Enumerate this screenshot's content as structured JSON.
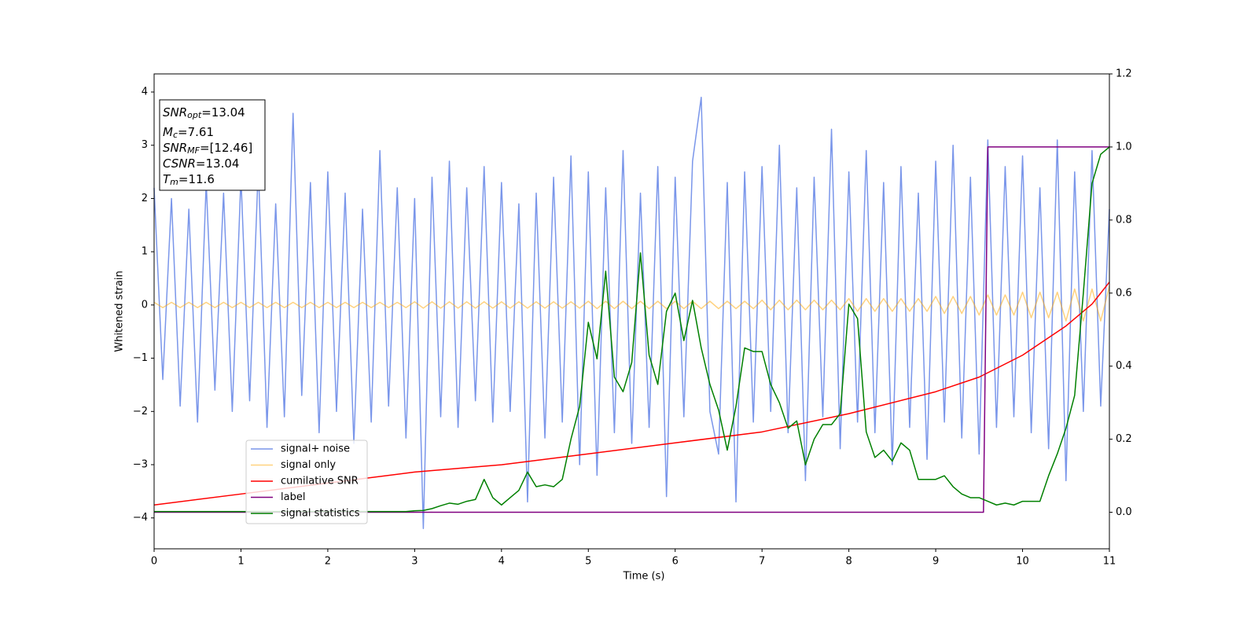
{
  "chart_data": {
    "type": "line",
    "xlabel": "Time (s)",
    "ylabel": "Whitened strain",
    "xlim": [
      0,
      11
    ],
    "xticks": [
      0,
      1,
      2,
      3,
      4,
      5,
      6,
      7,
      8,
      9,
      10,
      11
    ],
    "ylim": [
      -4.58,
      4.34
    ],
    "yticks": [
      -4,
      -3,
      -2,
      -1,
      0,
      1,
      2,
      3,
      4
    ],
    "y2lim": [
      -0.1,
      1.2
    ],
    "y2ticks": [
      {
        "value": 0,
        "label": "0.0"
      },
      {
        "value": 0.2,
        "label": "0.2"
      },
      {
        "value": 0.4,
        "label": "0.4"
      },
      {
        "value": 0.6,
        "label": "0.6"
      },
      {
        "value": 0.8,
        "label": "0.8"
      },
      {
        "value": 1,
        "label": "1.0"
      },
      {
        "value": 1.2,
        "label": "1.2"
      }
    ],
    "annotations": [
      {
        "name": "SNR",
        "sub": "opt",
        "text": "=13.04"
      },
      {
        "name": "M",
        "sub": "c",
        "text": "=7.61"
      },
      {
        "name": "SNR",
        "sub": "MF",
        "text": "=[12.46]"
      },
      {
        "name": "CSNR",
        "text": "=13.04"
      },
      {
        "name": "T",
        "sub": "m",
        "text": "=11.6"
      }
    ],
    "x": [
      0,
      0.1,
      0.2,
      0.3,
      0.4,
      0.5,
      0.6,
      0.7,
      0.8,
      0.9,
      1,
      1.1,
      1.2,
      1.3,
      1.4,
      1.5,
      1.6,
      1.7,
      1.8,
      1.9,
      2,
      2.1,
      2.2,
      2.3,
      2.4,
      2.5,
      2.6,
      2.7,
      2.8,
      2.9,
      3,
      3.1,
      3.2,
      3.3,
      3.4,
      3.5,
      3.6,
      3.7,
      3.8,
      3.9,
      4,
      4.1,
      4.2,
      4.3,
      4.4,
      4.5,
      4.6,
      4.7,
      4.8,
      4.9,
      5,
      5.1,
      5.2,
      5.3,
      5.4,
      5.5,
      5.6,
      5.7,
      5.8,
      5.9,
      6,
      6.1,
      6.2,
      6.3,
      6.4,
      6.5,
      6.6,
      6.7,
      6.8,
      6.9,
      7,
      7.1,
      7.2,
      7.3,
      7.4,
      7.5,
      7.6,
      7.7,
      7.8,
      7.9,
      8,
      8.1,
      8.2,
      8.3,
      8.4,
      8.5,
      8.6,
      8.7,
      8.8,
      8.9,
      9,
      9.1,
      9.2,
      9.3,
      9.4,
      9.5,
      9.6,
      9.7,
      9.8,
      9.9,
      10,
      10.1,
      10.2,
      10.3,
      10.4,
      10.5,
      10.6,
      10.7,
      10.8,
      10.9,
      11
    ],
    "series": [
      {
        "name": "signal+ noise",
        "color": "#4169e1",
        "opacity": 0.7,
        "values": [
          2.2,
          -1.4,
          2.0,
          -1.9,
          1.8,
          -2.2,
          2.3,
          -1.6,
          2.1,
          -2.0,
          2.4,
          -1.8,
          2.6,
          -2.3,
          1.9,
          -2.1,
          3.6,
          -1.7,
          2.3,
          -2.4,
          2.5,
          -2.0,
          2.1,
          -2.6,
          1.8,
          -2.2,
          2.9,
          -1.9,
          2.2,
          -2.5,
          2.0,
          -4.2,
          2.4,
          -2.1,
          2.7,
          -2.3,
          2.2,
          -1.8,
          2.6,
          -2.2,
          2.3,
          -2.0,
          1.9,
          -3.7,
          2.1,
          -2.5,
          2.4,
          -2.2,
          2.8,
          -3.0,
          2.5,
          -3.2,
          2.2,
          -2.4,
          2.9,
          -2.6,
          2.1,
          -2.3,
          2.6,
          -3.6,
          2.4,
          -2.1,
          2.7,
          3.9,
          -2.0,
          -2.8,
          2.3,
          -3.7,
          2.5,
          -2.2,
          2.6,
          -2.0,
          3.0,
          -2.4,
          2.2,
          -3.3,
          2.4,
          -2.1,
          3.3,
          -2.7,
          2.5,
          -2.2,
          2.9,
          -2.4,
          2.3,
          -3.0,
          2.6,
          -2.3,
          2.1,
          -2.9,
          2.7,
          -2.2,
          3.0,
          -2.5,
          2.4,
          -2.8,
          3.1,
          -2.3,
          2.6,
          -2.1,
          2.8,
          -2.4,
          2.2,
          -2.7,
          3.1,
          -3.3,
          2.5,
          -2.0,
          2.9,
          -1.9,
          1.8
        ]
      },
      {
        "name": "signal only",
        "color": "#ffa500",
        "opacity": 0.5,
        "values": [
          0.05,
          -0.05,
          0.05,
          -0.05,
          0.05,
          -0.05,
          0.05,
          -0.05,
          0.05,
          -0.05,
          0.05,
          -0.05,
          0.05,
          -0.05,
          0.05,
          -0.05,
          0.05,
          -0.05,
          0.05,
          -0.05,
          0.05,
          -0.05,
          0.05,
          -0.05,
          0.05,
          -0.05,
          0.05,
          -0.05,
          0.05,
          -0.05,
          0.06,
          -0.06,
          0.06,
          -0.06,
          0.06,
          -0.06,
          0.06,
          -0.06,
          0.06,
          -0.06,
          0.06,
          -0.06,
          0.06,
          -0.06,
          0.06,
          -0.06,
          0.06,
          -0.06,
          0.06,
          -0.06,
          0.07,
          -0.07,
          0.07,
          -0.07,
          0.07,
          -0.07,
          0.07,
          -0.07,
          0.07,
          -0.07,
          0.07,
          -0.07,
          0.07,
          -0.07,
          0.07,
          -0.07,
          0.07,
          -0.07,
          0.07,
          -0.07,
          0.09,
          -0.09,
          0.09,
          -0.09,
          0.09,
          -0.09,
          0.09,
          -0.09,
          0.09,
          -0.09,
          0.12,
          -0.12,
          0.12,
          -0.12,
          0.12,
          -0.12,
          0.12,
          -0.12,
          0.12,
          -0.12,
          0.16,
          -0.16,
          0.16,
          -0.16,
          0.16,
          -0.19,
          0.19,
          -0.19,
          0.19,
          -0.19,
          0.24,
          -0.24,
          0.24,
          -0.24,
          0.24,
          -0.3,
          0.3,
          -0.3,
          0.3,
          -0.3,
          0.35
        ]
      },
      {
        "name": "cumilative SNR",
        "color": "#ff0000",
        "axis": "y2",
        "x": [
          0,
          1,
          2,
          3,
          4,
          5,
          6,
          7,
          8,
          9,
          9.5,
          10,
          10.5,
          10.8,
          11
        ],
        "values": [
          0.02,
          0.05,
          0.08,
          0.11,
          0.13,
          0.16,
          0.19,
          0.22,
          0.27,
          0.33,
          0.37,
          0.43,
          0.51,
          0.57,
          0.63
        ]
      },
      {
        "name": "label",
        "color": "#800080",
        "axis": "y2",
        "x": [
          0,
          9.55,
          9.6,
          11
        ],
        "values": [
          0,
          0,
          1,
          1
        ]
      },
      {
        "name": "signal statistics",
        "color": "#008000",
        "axis": "y2",
        "values": [
          0.002,
          0.002,
          0.002,
          0.002,
          0.002,
          0.002,
          0.002,
          0.002,
          0.002,
          0.002,
          0.002,
          0.002,
          0.002,
          0.002,
          0.002,
          0.002,
          0.002,
          0.002,
          0.002,
          0.002,
          0.002,
          0.002,
          0.002,
          0.002,
          0.002,
          0.002,
          0.002,
          0.002,
          0.002,
          0.002,
          0.004,
          0.005,
          0.01,
          0.018,
          0.025,
          0.022,
          0.03,
          0.035,
          0.09,
          0.04,
          0.02,
          0.04,
          0.06,
          0.11,
          0.07,
          0.075,
          0.07,
          0.09,
          0.2,
          0.29,
          0.52,
          0.42,
          0.66,
          0.37,
          0.33,
          0.41,
          0.71,
          0.43,
          0.35,
          0.55,
          0.6,
          0.47,
          0.58,
          0.45,
          0.35,
          0.28,
          0.17,
          0.29,
          0.45,
          0.44,
          0.44,
          0.35,
          0.3,
          0.23,
          0.25,
          0.13,
          0.2,
          0.24,
          0.24,
          0.27,
          0.57,
          0.53,
          0.22,
          0.15,
          0.17,
          0.14,
          0.19,
          0.17,
          0.09,
          0.09,
          0.09,
          0.1,
          0.07,
          0.05,
          0.04,
          0.04,
          0.03,
          0.02,
          0.025,
          0.02,
          0.03,
          0.03,
          0.03,
          0.1,
          0.16,
          0.23,
          0.32,
          0.6,
          0.9,
          0.98,
          1.0
        ]
      }
    ]
  }
}
